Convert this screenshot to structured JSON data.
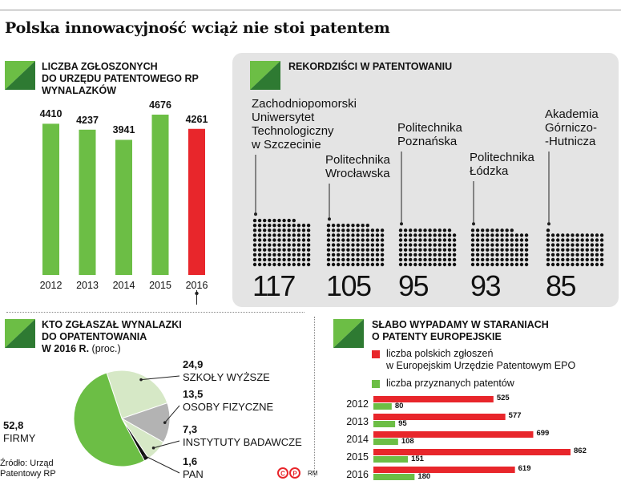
{
  "page": {
    "title": "Polska innowacyjność wciąż nie stoi patentem",
    "source_line1": "Źródło: Urząd",
    "source_line2": "Patentowy RP",
    "credit": "RM"
  },
  "colors": {
    "green": "#6cbe45",
    "red": "#e8262b",
    "dark_green": "#2e7a32",
    "light_green": "#d6e8c6",
    "grey": "#b3b3b3",
    "panel": "#e4e4e4"
  },
  "chart_data": [
    {
      "type": "bar",
      "title_lines": [
        "LICZBA ZGŁOSZONYCH",
        "DO URZĘDU PATENTOWEGO RP",
        "WYNALAZKÓW"
      ],
      "categories": [
        "2012",
        "2013",
        "2014",
        "2015",
        "2016"
      ],
      "values": [
        4410,
        4237,
        3941,
        4676,
        4261
      ],
      "labels": [
        "4410",
        "4237",
        "3941",
        "4676",
        "4261"
      ],
      "highlight_index": 4,
      "ylim": [
        0,
        4676
      ]
    },
    {
      "type": "table",
      "title": "REKORDZIŚCI W PATENTOWANIU",
      "items": [
        {
          "name_lines": [
            "Zachodniopomorski",
            "Uniwersytet",
            "Technologiczny",
            "w Szczecinie"
          ],
          "value": 117,
          "label": "117"
        },
        {
          "name_lines": [
            "Politechnika",
            "Wrocławska"
          ],
          "value": 105,
          "label": "105"
        },
        {
          "name_lines": [
            "Politechnika",
            "Poznańska"
          ],
          "value": 95,
          "label": "95"
        },
        {
          "name_lines": [
            "Politechnika",
            "Łódzka"
          ],
          "value": 93,
          "label": "93"
        },
        {
          "name_lines": [
            "Akademia",
            "Górniczo-",
            "-Hutnicza"
          ],
          "value": 85,
          "label": "85"
        }
      ]
    },
    {
      "type": "pie",
      "title_lines": [
        "KTO ZGŁASZAŁ WYNALAZKI",
        "DO OPATENTOWANIA"
      ],
      "title_last_bold": "W 2016 R.",
      "title_last_unit": "(proc.)",
      "slices": [
        {
          "label": "SZKOŁY WYŻSZE",
          "value": 24.9,
          "value_label": "24,9",
          "color": "#d6e8c6"
        },
        {
          "label": "OSOBY FIZYCZNE",
          "value": 13.5,
          "value_label": "13,5",
          "color": "#b3b3b3"
        },
        {
          "label": "INSTYTUTY BADAWCZE",
          "value": 7.3,
          "value_label": "7,3",
          "color": "#d6e8c6"
        },
        {
          "label": "PAN",
          "value": 1.6,
          "value_label": "1,6",
          "color": "#111111"
        },
        {
          "label": "FIRMY",
          "value": 52.8,
          "value_label": "52,8",
          "color": "#6cbe45"
        }
      ]
    },
    {
      "type": "bar",
      "title_lines": [
        "SŁABO WYPADAMY W STARANIACH",
        "O PATENTY EUROPEJSKIE"
      ],
      "categories": [
        "2012",
        "2013",
        "2014",
        "2015",
        "2016"
      ],
      "series": [
        {
          "name_lines": [
            "liczba polskich zgłoszeń",
            "w Europejskim Urzędzie Patentowym EPO"
          ],
          "values": [
            525,
            577,
            699,
            862,
            619
          ],
          "labels": [
            "525",
            "577",
            "699",
            "862",
            "619"
          ],
          "color": "#e8262b"
        },
        {
          "name_lines": [
            "liczba przyznanych patentów"
          ],
          "values": [
            80,
            95,
            108,
            151,
            180
          ],
          "labels": [
            "80",
            "95",
            "108",
            "151",
            "180"
          ],
          "color": "#6cbe45"
        }
      ],
      "xlim": [
        0,
        862
      ]
    }
  ]
}
